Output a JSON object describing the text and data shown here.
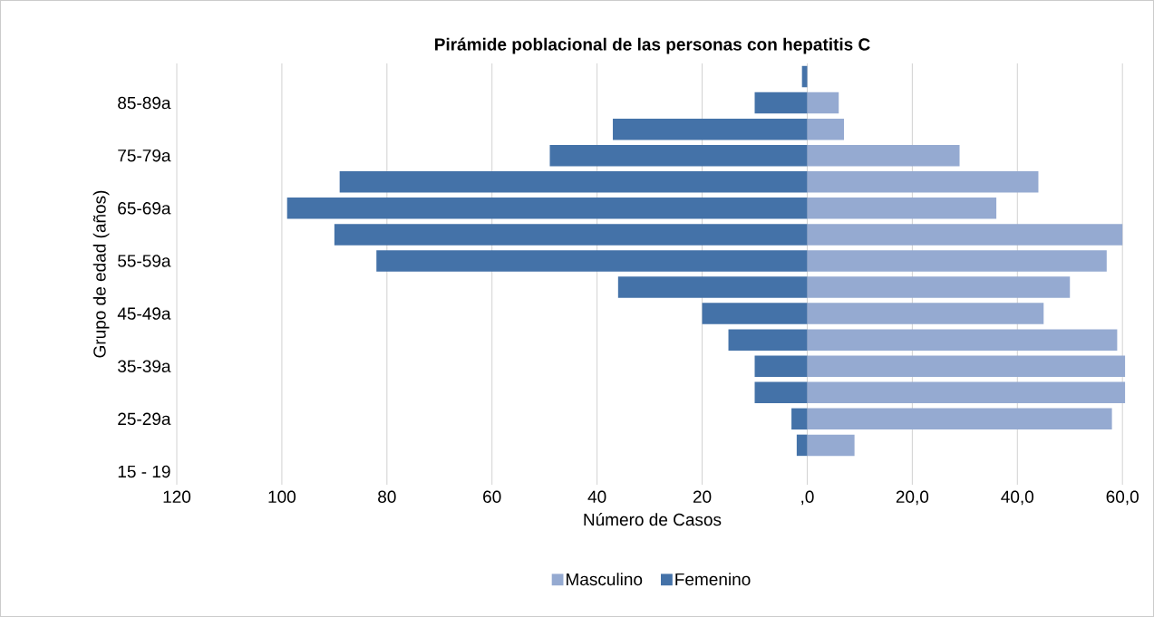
{
  "chart_data": {
    "type": "bar",
    "orientation": "horizontal",
    "title": "Pirámide poblacional de las personas con hepatitis C",
    "xlabel": "Número de Casos",
    "ylabel": "Grupo de edad (años)",
    "categories": [
      null,
      "85-89a",
      null,
      "75-79a",
      null,
      "65-69a",
      null,
      "55-59a",
      null,
      "45-49a",
      null,
      "35-39a",
      null,
      "25-29a",
      null,
      "15 - 19"
    ],
    "series": [
      {
        "name": "Masculino",
        "color": "#95aad1",
        "values": [
          0,
          6,
          7,
          29,
          44,
          36,
          60,
          57,
          50,
          45,
          59,
          60.5,
          60.5,
          58,
          9,
          0
        ]
      },
      {
        "name": "Femenino",
        "color": "#4472a8",
        "values": [
          -1,
          -10,
          -37,
          -49,
          -89,
          -99,
          -90,
          -82,
          -36,
          -20,
          -15,
          -10,
          -10,
          -3,
          -2,
          0
        ]
      }
    ],
    "xlim": [
      -120,
      61
    ],
    "xticks": [
      {
        "value": -120,
        "label": "120"
      },
      {
        "value": -100,
        "label": "100"
      },
      {
        "value": -80,
        "label": "80"
      },
      {
        "value": -60,
        "label": "60"
      },
      {
        "value": -40,
        "label": "40"
      },
      {
        "value": -20,
        "label": "20"
      },
      {
        "value": 0,
        "label": ",0"
      },
      {
        "value": 20,
        "label": "20,0"
      },
      {
        "value": 40,
        "label": "40,0"
      },
      {
        "value": 60,
        "label": "60,0"
      }
    ],
    "grid": "x",
    "legend": "bottom",
    "stacked": true
  }
}
